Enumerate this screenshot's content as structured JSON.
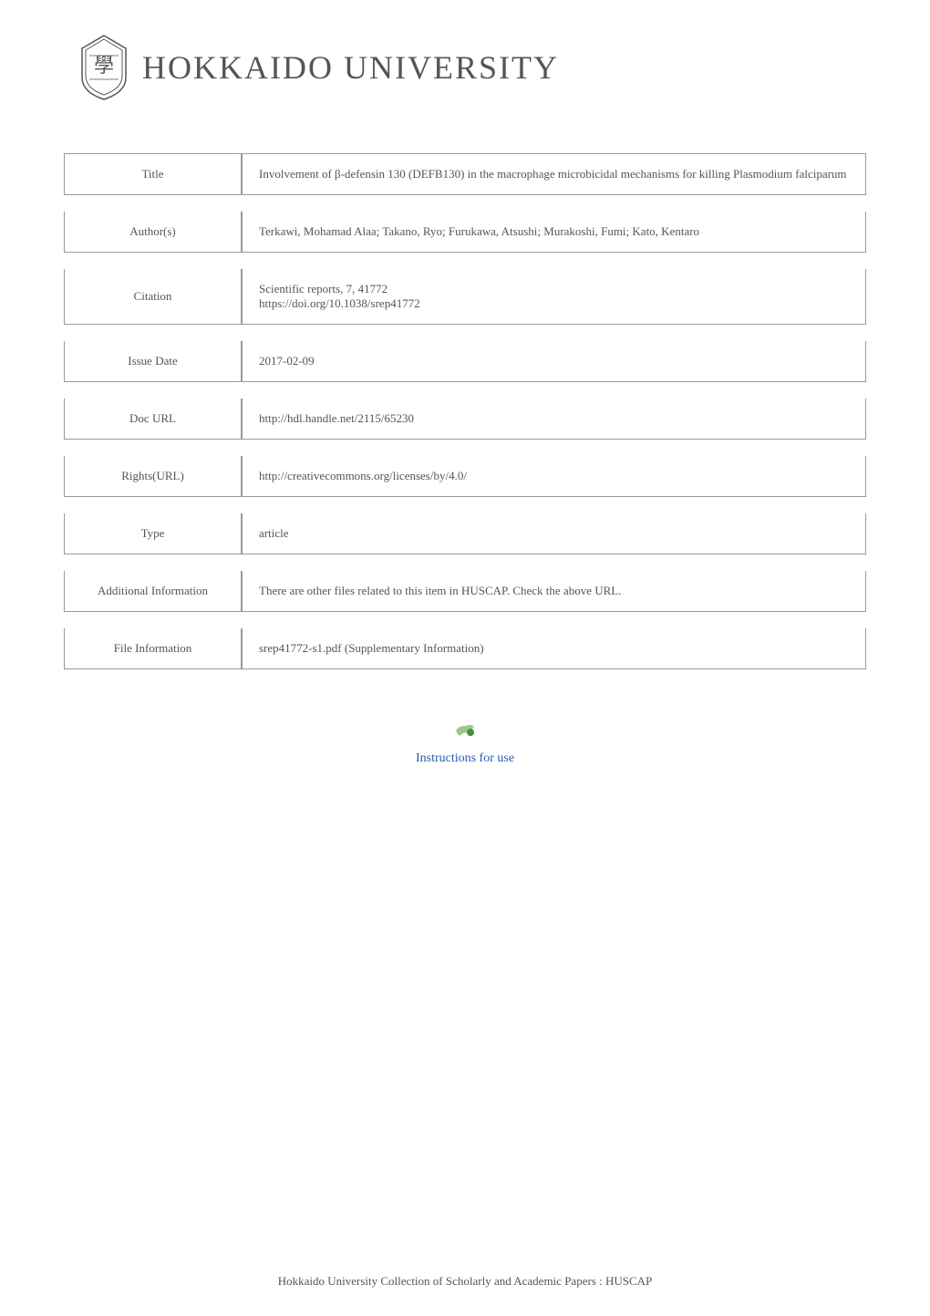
{
  "header": {
    "university_name": "HOKKAIDO UNIVERSITY"
  },
  "rows": [
    {
      "key": "Title",
      "value": "Involvement of β-defensin 130 (DEFB130) in the macrophage microbicidal mechanisms for killing Plasmodium falciparum"
    },
    {
      "key": "Author(s)",
      "value": "Terkawi, Mohamad Alaa; Takano, Ryo; Furukawa, Atsushi; Murakoshi, Fumi; Kato, Kentaro"
    },
    {
      "key": "Citation",
      "value": "Scientific reports, 7, 41772\nhttps://doi.org/10.1038/srep41772"
    },
    {
      "key": "Issue Date",
      "value": "2017-02-09"
    },
    {
      "key": "Doc URL",
      "value": "http://hdl.handle.net/2115/65230"
    },
    {
      "key": "Rights(URL)",
      "value": "http://creativecommons.org/licenses/by/4.0/"
    },
    {
      "key": "Type",
      "value": "article"
    },
    {
      "key": "Additional Information",
      "value": "There are other files related to this item in HUSCAP. Check the above URL."
    },
    {
      "key": "File Information",
      "value": "srep41772-s1.pdf (Supplementary Information)"
    }
  ],
  "instructions": {
    "link_text": "Instructions for use"
  },
  "footer": {
    "text": "Hokkaido University Collection of Scholarly and Academic Papers : HUSCAP"
  },
  "colors": {
    "text": "#555555",
    "border": "#999999",
    "link": "#2a5caa",
    "icon_body": "#4a8c3a",
    "icon_wing": "#9bc88f"
  }
}
